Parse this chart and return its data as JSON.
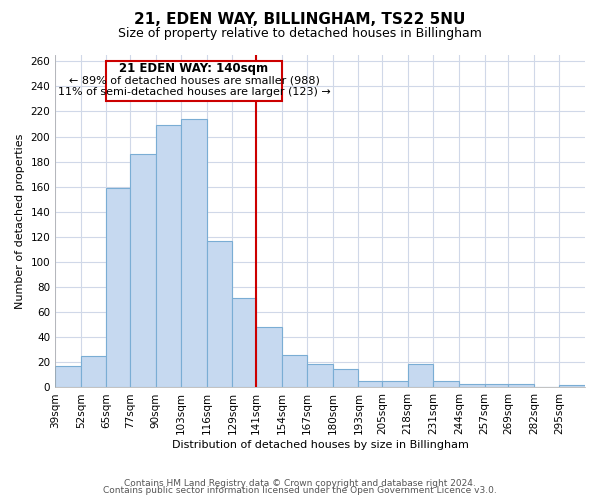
{
  "title": "21, EDEN WAY, BILLINGHAM, TS22 5NU",
  "subtitle": "Size of property relative to detached houses in Billingham",
  "xlabel": "Distribution of detached houses by size in Billingham",
  "ylabel": "Number of detached properties",
  "bin_labels": [
    "39sqm",
    "52sqm",
    "65sqm",
    "77sqm",
    "90sqm",
    "103sqm",
    "116sqm",
    "129sqm",
    "141sqm",
    "154sqm",
    "167sqm",
    "180sqm",
    "193sqm",
    "205sqm",
    "218sqm",
    "231sqm",
    "244sqm",
    "257sqm",
    "269sqm",
    "282sqm",
    "295sqm"
  ],
  "bin_edges": [
    39,
    52,
    65,
    77,
    90,
    103,
    116,
    129,
    141,
    154,
    167,
    180,
    193,
    205,
    218,
    231,
    244,
    257,
    269,
    282,
    295
  ],
  "bar_heights": [
    17,
    25,
    159,
    186,
    209,
    214,
    117,
    71,
    48,
    26,
    19,
    15,
    5,
    5,
    19,
    5,
    3,
    3,
    3,
    0,
    2
  ],
  "bar_color": "#c6d9f0",
  "bar_edgecolor": "#7aadd4",
  "marker_value": 141,
  "marker_color": "#cc0000",
  "annotation_title": "21 EDEN WAY: 140sqm",
  "annotation_line1": "← 89% of detached houses are smaller (988)",
  "annotation_line2": "11% of semi-detached houses are larger (123) →",
  "annotation_box_edgecolor": "#cc0000",
  "ylim": [
    0,
    265
  ],
  "yticks": [
    0,
    20,
    40,
    60,
    80,
    100,
    120,
    140,
    160,
    180,
    200,
    220,
    240,
    260
  ],
  "footer1": "Contains HM Land Registry data © Crown copyright and database right 2024.",
  "footer2": "Contains public sector information licensed under the Open Government Licence v3.0.",
  "background_color": "#ffffff",
  "grid_color": "#d0d8e8",
  "title_fontsize": 11,
  "subtitle_fontsize": 9,
  "label_fontsize": 8,
  "tick_fontsize": 7.5,
  "footer_fontsize": 6.5
}
